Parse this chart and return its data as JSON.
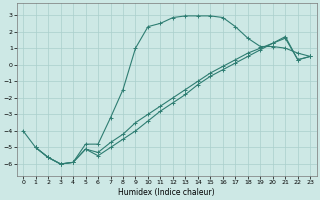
{
  "xlabel": "Humidex (Indice chaleur)",
  "bg_color": "#cde8e5",
  "grid_color": "#aacfcc",
  "line_color": "#2e7d72",
  "xlim": [
    -0.5,
    23.5
  ],
  "ylim": [
    -6.7,
    3.7
  ],
  "xticks": [
    0,
    1,
    2,
    3,
    4,
    5,
    6,
    7,
    8,
    9,
    10,
    11,
    12,
    13,
    14,
    15,
    16,
    17,
    18,
    19,
    20,
    21,
    22,
    23
  ],
  "yticks": [
    -6,
    -5,
    -4,
    -3,
    -2,
    -1,
    0,
    1,
    2,
    3
  ],
  "line1_x": [
    0,
    1,
    2,
    3,
    4,
    5,
    6,
    7,
    8,
    9,
    10,
    11,
    12,
    13,
    14,
    15,
    16,
    17,
    18,
    19,
    20,
    21,
    22,
    23
  ],
  "line1_y": [
    -4.0,
    -5.0,
    -5.6,
    -6.0,
    -5.9,
    -4.8,
    -4.8,
    -3.2,
    -1.5,
    1.0,
    2.3,
    2.5,
    2.85,
    2.95,
    2.95,
    2.95,
    2.85,
    2.3,
    1.6,
    1.1,
    1.1,
    1.0,
    0.7,
    0.5
  ],
  "line2_x": [
    1,
    2,
    3,
    4,
    5,
    6,
    7,
    8,
    9,
    10,
    11,
    12,
    13,
    14,
    15,
    16,
    17,
    18,
    19,
    20,
    21,
    22,
    23
  ],
  "line2_y": [
    -5.0,
    -5.6,
    -6.0,
    -5.9,
    -5.1,
    -5.5,
    -5.0,
    -4.5,
    -4.0,
    -3.4,
    -2.8,
    -2.3,
    -1.8,
    -1.2,
    -0.7,
    -0.3,
    0.1,
    0.5,
    0.9,
    1.3,
    1.7,
    0.3,
    0.5
  ],
  "line3_x": [
    1,
    2,
    3,
    4,
    5,
    6,
    7,
    8,
    9,
    10,
    11,
    12,
    13,
    14,
    15,
    16,
    17,
    18,
    19,
    20,
    21,
    22,
    23
  ],
  "line3_y": [
    -5.0,
    -5.6,
    -6.0,
    -5.9,
    -5.1,
    -5.3,
    -4.7,
    -4.2,
    -3.5,
    -3.0,
    -2.5,
    -2.0,
    -1.5,
    -1.0,
    -0.5,
    -0.1,
    0.3,
    0.7,
    1.0,
    1.3,
    1.6,
    0.3,
    0.5
  ]
}
